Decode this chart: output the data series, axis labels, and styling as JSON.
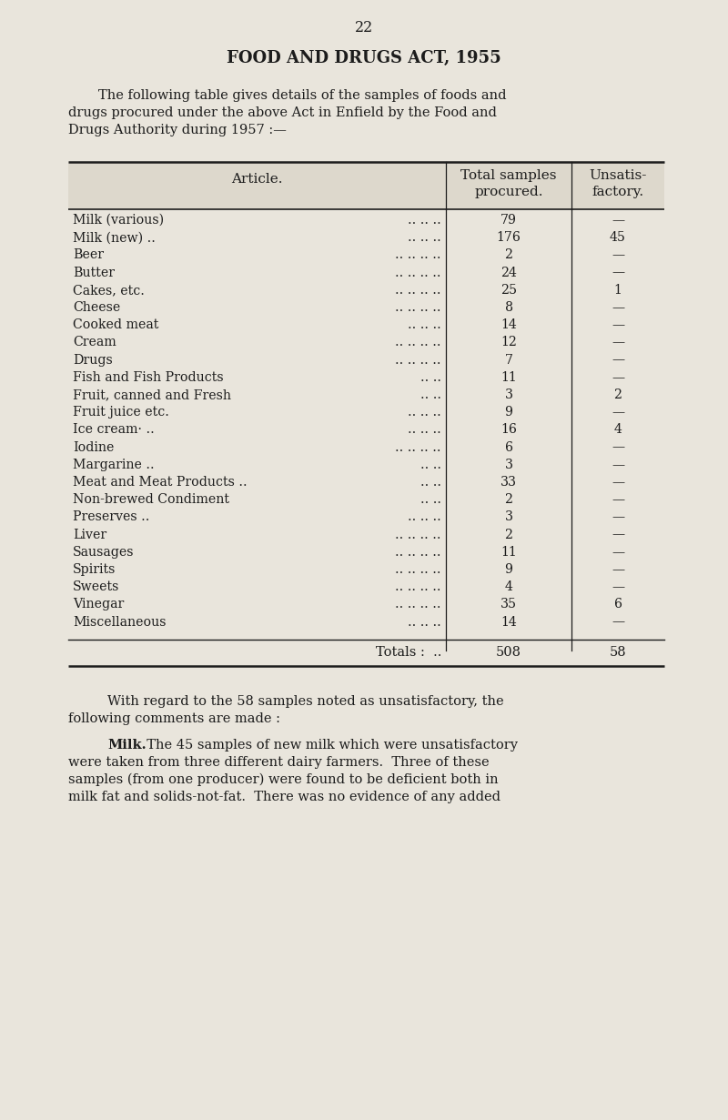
{
  "page_number": "22",
  "title": "FOOD AND DRUGS ACT, 1955",
  "intro_lines": [
    "The following table gives details of the samples of foods and",
    "drugs procured under the above Act in Enfield by the Food and",
    "Drugs Authority during 1957 :—"
  ],
  "col_header1": "Article.",
  "col_header2": "Total samples\nprocured.",
  "col_header3": "Unsatis-\nfactory.",
  "rows": [
    [
      "Milk (various)",
      ".. .. ..",
      "79",
      "—"
    ],
    [
      "Milk (new) ..",
      ".. .. ..",
      "176",
      "45"
    ],
    [
      "Beer",
      ".. .. .. ..",
      "2",
      "—"
    ],
    [
      "Butter",
      ".. .. .. ..",
      "24",
      "—"
    ],
    [
      "Cakes, etc.",
      ".. .. .. ..",
      "25",
      "1"
    ],
    [
      "Cheese",
      ".. .. .. ..",
      "8",
      "—"
    ],
    [
      "Cooked meat",
      ".. .. ..",
      "14",
      "—"
    ],
    [
      "Cream",
      ".. .. .. ..",
      "12",
      "—"
    ],
    [
      "Drugs",
      ".. .. .. ..",
      "7",
      "—"
    ],
    [
      "Fish and Fish Products",
      ".. ..",
      "11",
      "—"
    ],
    [
      "Fruit, canned and Fresh",
      ".. ..",
      "3",
      "2"
    ],
    [
      "Fruit juice etc.",
      ".. .. ..",
      "9",
      "—"
    ],
    [
      "Ice cream· ..",
      ".. .. ..",
      "16",
      "4"
    ],
    [
      "Iodine",
      ".. .. .. ..",
      "6",
      "—"
    ],
    [
      "Margarine ..",
      ".. ..",
      "3",
      "—"
    ],
    [
      "Meat and Meat Products ..",
      ".. ..",
      "33",
      "—"
    ],
    [
      "Non-brewed Condiment",
      ".. ..",
      "2",
      "—"
    ],
    [
      "Preserves ..",
      ".. .. ..",
      "3",
      "—"
    ],
    [
      "Liver",
      ".. .. .. ..",
      "2",
      "—"
    ],
    [
      "Sausages",
      ".. .. .. ..",
      "11",
      "—"
    ],
    [
      "Spirits",
      ".. .. .. ..",
      "9",
      "—"
    ],
    [
      "Sweets",
      ".. .. .. ..",
      "4",
      "—"
    ],
    [
      "Vinegar",
      ".. .. .. ..",
      "35",
      "6"
    ],
    [
      "Miscellaneous",
      ".. .. ..",
      "14",
      "—"
    ]
  ],
  "totals_label": "Totals :",
  "totals_dots": "..",
  "totals_val1": "508",
  "totals_val2": "58",
  "para1_lines": [
    "With regard to the 58 samples noted as unsatisfactory, the",
    "following comments are made :"
  ],
  "milk_bold": "Milk.",
  "milk_line1": "  The 45 samples of new milk which were unsatisfactory",
  "para2_lines": [
    "were taken from three different dairy farmers.  Three of these",
    "samples (from one producer) were found to be deficient both in",
    "milk fat and solids-not-fat.  There was no evidence of any added"
  ],
  "bg_color": "#e9e5dc",
  "text_color": "#1c1c1c",
  "table_bg": "#ddd8cc"
}
